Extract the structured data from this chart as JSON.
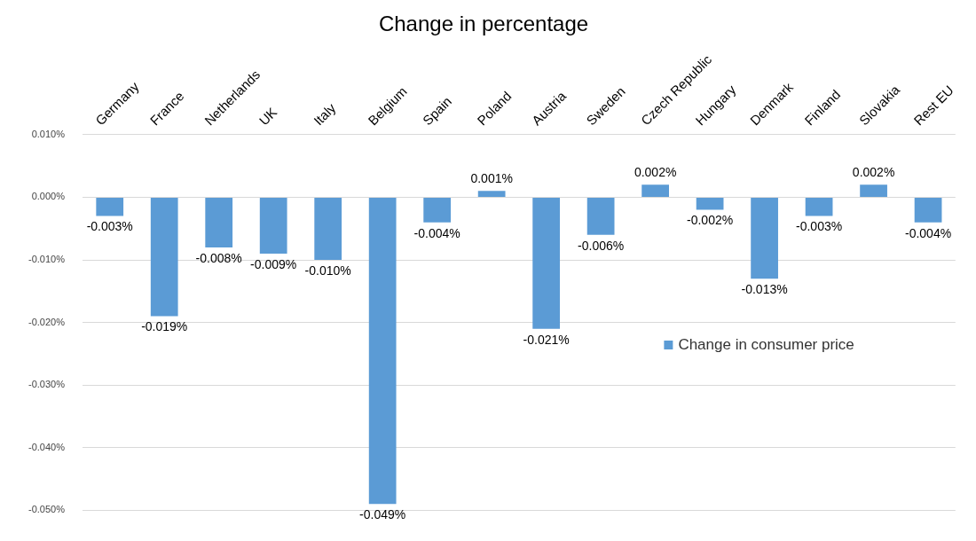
{
  "chart_data": {
    "type": "bar",
    "title": "Change in percentage",
    "categories": [
      "Germany",
      "France",
      "Netherlands",
      "UK",
      "Italy",
      "Belgium",
      "Spain",
      "Poland",
      "Austria",
      "Sweden",
      "Czech Republic",
      "Hungary",
      "Denmark",
      "Finland",
      "Slovakia",
      "Rest EU"
    ],
    "series": [
      {
        "name": "Change in consumer price",
        "color": "#5b9bd5",
        "values": [
          -0.003,
          -0.019,
          -0.008,
          -0.009,
          -0.01,
          -0.049,
          -0.004,
          0.001,
          -0.021,
          -0.006,
          0.002,
          -0.002,
          -0.013,
          -0.003,
          0.002,
          -0.004
        ],
        "value_labels": [
          "-0.003%",
          "-0.019%",
          "-0.008%",
          "-0.009%",
          "-0.010%",
          "-0.049%",
          "-0.004%",
          "0.001%",
          "-0.021%",
          "-0.006%",
          "0.002%",
          "-0.002%",
          "-0.013%",
          "-0.003%",
          "0.002%",
          "-0.004%"
        ]
      }
    ],
    "ylim": [
      -0.05,
      0.01
    ],
    "yticks": [
      {
        "value": 0.01,
        "label": "0.010%"
      },
      {
        "value": 0,
        "label": "0.000%"
      },
      {
        "value": -0.01,
        "label": "-0.010%"
      },
      {
        "value": -0.02,
        "label": "-0.020%"
      },
      {
        "value": -0.03,
        "label": "-0.030%"
      },
      {
        "value": -0.04,
        "label": "-0.040%"
      },
      {
        "value": -0.05,
        "label": "-0.050%"
      }
    ],
    "grid": "y",
    "legend": "right"
  }
}
